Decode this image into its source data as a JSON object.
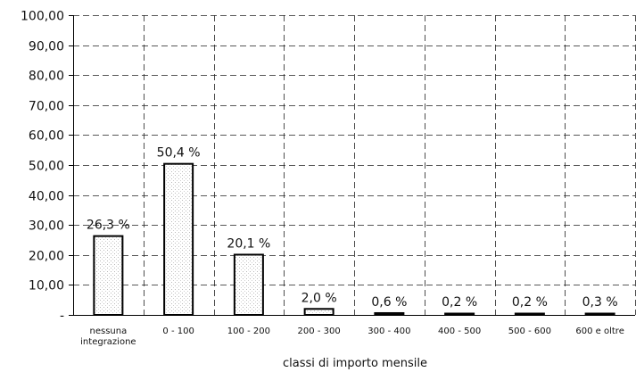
{
  "chart_data": {
    "type": "bar",
    "xlabel": "classi di importo mensile",
    "categories": [
      [
        "nessuna",
        "integrazione"
      ],
      [
        "0 - 100"
      ],
      [
        "100 - 200"
      ],
      [
        "200 - 300"
      ],
      [
        "300 - 400"
      ],
      [
        "400 - 500"
      ],
      [
        "500 - 600"
      ],
      [
        "600 e oltre"
      ]
    ],
    "values": [
      26.3,
      50.4,
      20.1,
      2.0,
      0.6,
      0.2,
      0.2,
      0.3
    ],
    "data_labels": [
      "26,3 %",
      "50,4 %",
      "20,1 %",
      "2,0 %",
      "0,6 %",
      "0,2 %",
      "0,2 %",
      "0,3 %"
    ],
    "ylim": [
      0,
      100
    ],
    "yticks": [
      0,
      10,
      20,
      30,
      40,
      50,
      60,
      70,
      80,
      90,
      100
    ],
    "ytick_labels": [
      "-",
      "10,00",
      "20,00",
      "30,00",
      "40,00",
      "50,00",
      "60,00",
      "70,00",
      "80,00",
      "90,00",
      "100,00"
    ],
    "grid": true,
    "bar_fill": "dotted light grey pattern",
    "bar_edge_color": "#000000"
  }
}
